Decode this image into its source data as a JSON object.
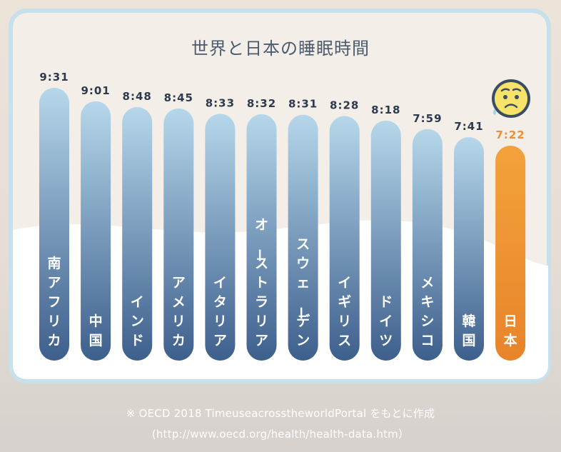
{
  "chart_data": {
    "type": "bar",
    "title": "世界と日本の睡眠時間",
    "categories": [
      "南アフリカ",
      "中国",
      "インド",
      "アメリカ",
      "イタリア",
      "オーストラリア",
      "スウェーデン",
      "イギリス",
      "ドイツ",
      "メキシコ",
      "韓国",
      "日本"
    ],
    "value_labels": [
      "9:31",
      "9:01",
      "8:48",
      "8:45",
      "8:33",
      "8:32",
      "8:31",
      "8:28",
      "8:18",
      "7:59",
      "7:41",
      "7:22"
    ],
    "values": [
      571,
      541,
      528,
      525,
      513,
      512,
      511,
      508,
      498,
      479,
      461,
      442
    ],
    "unit": "minutes",
    "highlight": "日本",
    "colors": {
      "bar_top": "#b6d7ea",
      "bar_bottom": "#3d5f8c",
      "highlight": "#ee9030",
      "label_default": "#2d3a4e",
      "label_highlight": "#ee9030"
    },
    "icon": "anxious-face-icon"
  },
  "source": {
    "line1": "※ OECD 2018 TimeuseacrosstheworldPortal をもとに作成",
    "line2": "(http://www.oecd.org/health/health-data.htm）"
  }
}
